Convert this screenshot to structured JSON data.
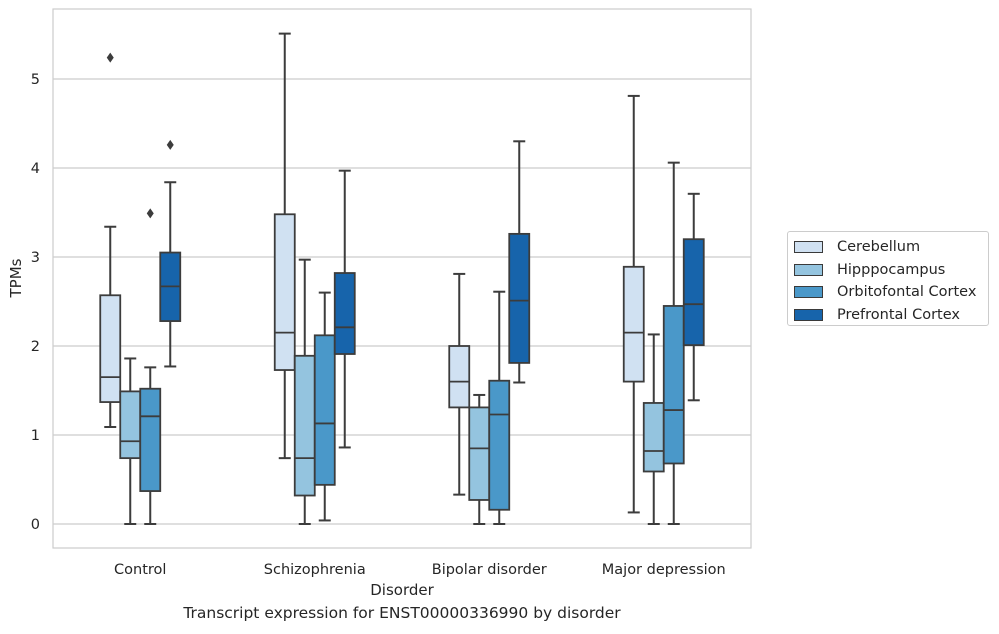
{
  "chart_data": {
    "type": "box",
    "title": "",
    "xlabel": "Disorder",
    "ylabel": "TPMs",
    "ylim": [
      -0.27,
      6.05
    ],
    "yticks": [
      0,
      1,
      2,
      3,
      4,
      5
    ],
    "grid": "horizontal",
    "legend_position": "right",
    "categories": [
      "Control",
      "Schizophrenia",
      "Bipolar disorder",
      "Major depression"
    ],
    "series": [
      {
        "name": "Cerebellum",
        "color": "#d0e1f2",
        "boxes": [
          {
            "whisker_low": 1.09,
            "q1": 1.37,
            "median": 1.65,
            "q3": 2.57,
            "whisker_high": 3.34,
            "outliers": [
              5.24
            ]
          },
          {
            "whisker_low": 0.74,
            "q1": 1.73,
            "median": 2.15,
            "q3": 3.48,
            "whisker_high": 5.51,
            "outliers": []
          },
          {
            "whisker_low": 0.33,
            "q1": 1.31,
            "median": 1.6,
            "q3": 2.0,
            "whisker_high": 2.81,
            "outliers": []
          },
          {
            "whisker_low": 0.13,
            "q1": 1.6,
            "median": 2.15,
            "q3": 2.89,
            "whisker_high": 4.81,
            "outliers": []
          }
        ]
      },
      {
        "name": "Hipppocampus",
        "color": "#94c4df",
        "boxes": [
          {
            "whisker_low": 0.0,
            "q1": 0.74,
            "median": 0.93,
            "q3": 1.49,
            "whisker_high": 1.86,
            "outliers": []
          },
          {
            "whisker_low": 0.0,
            "q1": 0.32,
            "median": 0.74,
            "q3": 1.89,
            "whisker_high": 2.97,
            "outliers": []
          },
          {
            "whisker_low": 0.0,
            "q1": 0.27,
            "median": 0.85,
            "q3": 1.31,
            "whisker_high": 1.45,
            "outliers": []
          },
          {
            "whisker_low": 0.0,
            "q1": 0.59,
            "median": 0.82,
            "q3": 1.36,
            "whisker_high": 2.13,
            "outliers": []
          }
        ]
      },
      {
        "name": "Orbitofontal Cortex",
        "color": "#4a98c9",
        "boxes": [
          {
            "whisker_low": 0.0,
            "q1": 0.37,
            "median": 1.21,
            "q3": 1.52,
            "whisker_high": 1.76,
            "outliers": [
              3.49
            ]
          },
          {
            "whisker_low": 0.04,
            "q1": 0.44,
            "median": 1.13,
            "q3": 2.12,
            "whisker_high": 2.6,
            "outliers": []
          },
          {
            "whisker_low": 0.0,
            "q1": 0.16,
            "median": 1.23,
            "q3": 1.61,
            "whisker_high": 2.61,
            "outliers": []
          },
          {
            "whisker_low": 0.0,
            "q1": 0.68,
            "median": 1.28,
            "q3": 2.45,
            "whisker_high": 4.06,
            "outliers": []
          }
        ]
      },
      {
        "name": "Prefrontal Cortex",
        "color": "#1764ab",
        "boxes": [
          {
            "whisker_low": 1.77,
            "q1": 2.28,
            "median": 2.67,
            "q3": 3.05,
            "whisker_high": 3.84,
            "outliers": [
              4.26
            ]
          },
          {
            "whisker_low": 0.86,
            "q1": 1.91,
            "median": 2.21,
            "q3": 2.82,
            "whisker_high": 3.97,
            "outliers": []
          },
          {
            "whisker_low": 1.59,
            "q1": 1.81,
            "median": 2.51,
            "q3": 3.26,
            "whisker_high": 4.3,
            "outliers": []
          },
          {
            "whisker_low": 1.39,
            "q1": 2.01,
            "median": 2.47,
            "q3": 3.2,
            "whisker_high": 3.71,
            "outliers": []
          }
        ]
      }
    ]
  },
  "caption": "Transcript expression for ENST00000336990 by disorder"
}
